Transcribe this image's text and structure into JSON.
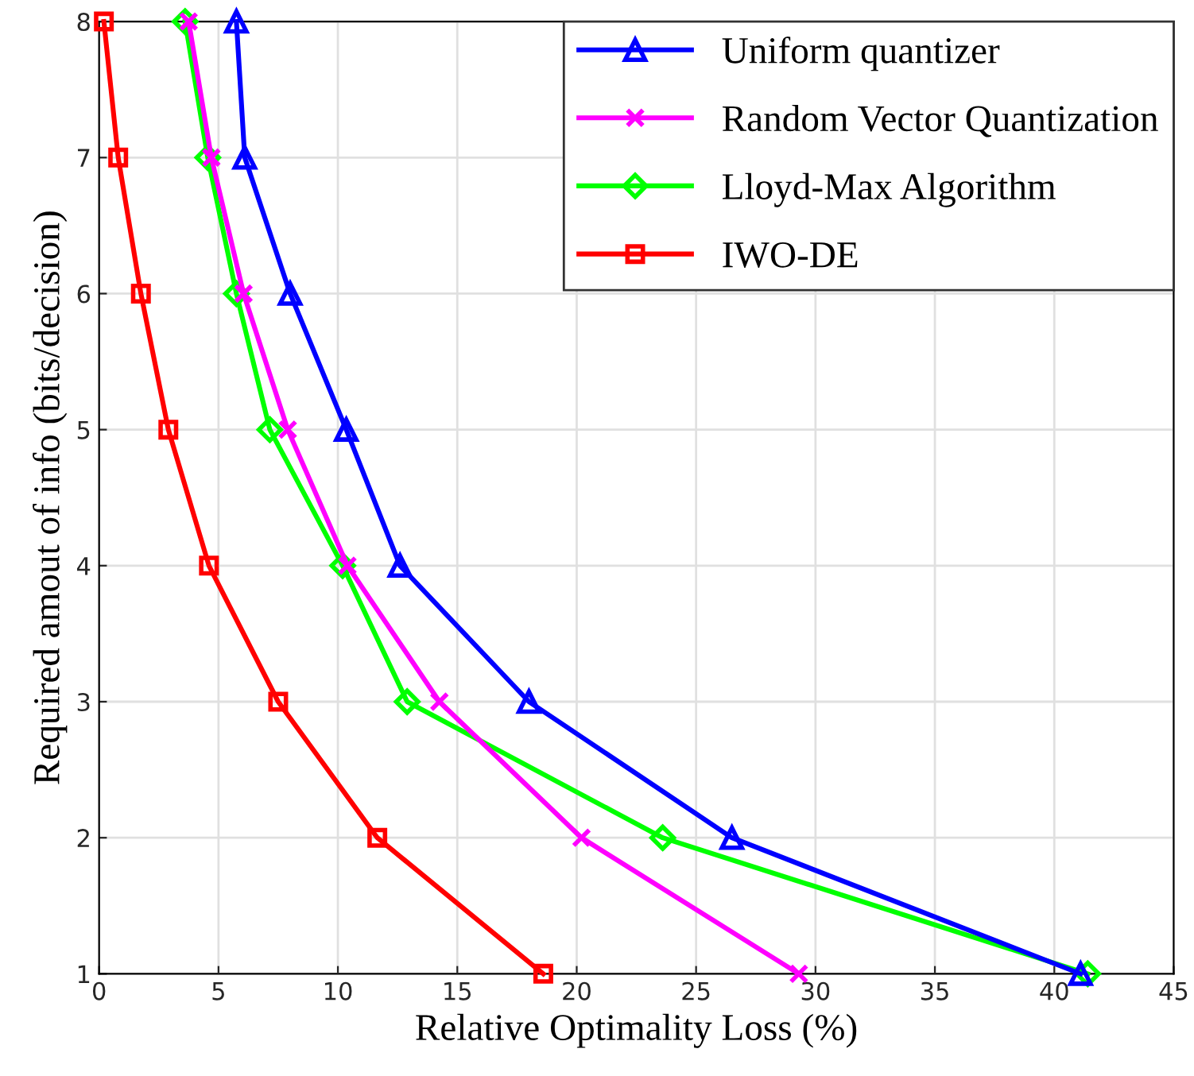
{
  "chart_data": {
    "type": "line",
    "xlabel": "Relative Optimality Loss (%)",
    "ylabel": "Required amout of info (bits/decision)",
    "xlim": [
      0,
      45
    ],
    "ylim": [
      1,
      8
    ],
    "xticks": [
      0,
      5,
      10,
      15,
      20,
      25,
      30,
      35,
      40,
      45
    ],
    "yticks": [
      1,
      2,
      3,
      4,
      5,
      6,
      7,
      8
    ],
    "grid": true,
    "legend": "top right",
    "series": [
      {
        "name": "Uniform quantizer",
        "color": "#0000ff",
        "marker": "triangle",
        "x": [
          5.75,
          6.1,
          8.0,
          10.35,
          12.6,
          18.0,
          26.5,
          41.1
        ],
        "values": [
          8,
          7,
          6,
          5,
          4,
          3,
          2,
          1
        ]
      },
      {
        "name": "Random Vector Quantization",
        "color": "#ff00ff",
        "marker": "cross",
        "x": [
          3.75,
          4.7,
          6.05,
          7.9,
          10.4,
          14.25,
          20.2,
          29.3
        ],
        "values": [
          8,
          7,
          6,
          5,
          4,
          3,
          2,
          1
        ]
      },
      {
        "name": "Lloyd-Max Algorithm",
        "color": "#00ff00",
        "marker": "diamond",
        "x": [
          3.6,
          4.55,
          5.75,
          7.15,
          10.2,
          12.9,
          23.6,
          41.4
        ],
        "values": [
          8,
          7,
          6,
          5,
          4,
          3,
          2,
          1
        ]
      },
      {
        "name": "IWO-DE",
        "color": "#ff0000",
        "marker": "square",
        "x": [
          0.2,
          0.8,
          1.75,
          2.9,
          4.6,
          7.5,
          11.65,
          18.6
        ],
        "values": [
          8,
          7,
          6,
          5,
          4,
          3,
          2,
          1
        ]
      }
    ]
  }
}
